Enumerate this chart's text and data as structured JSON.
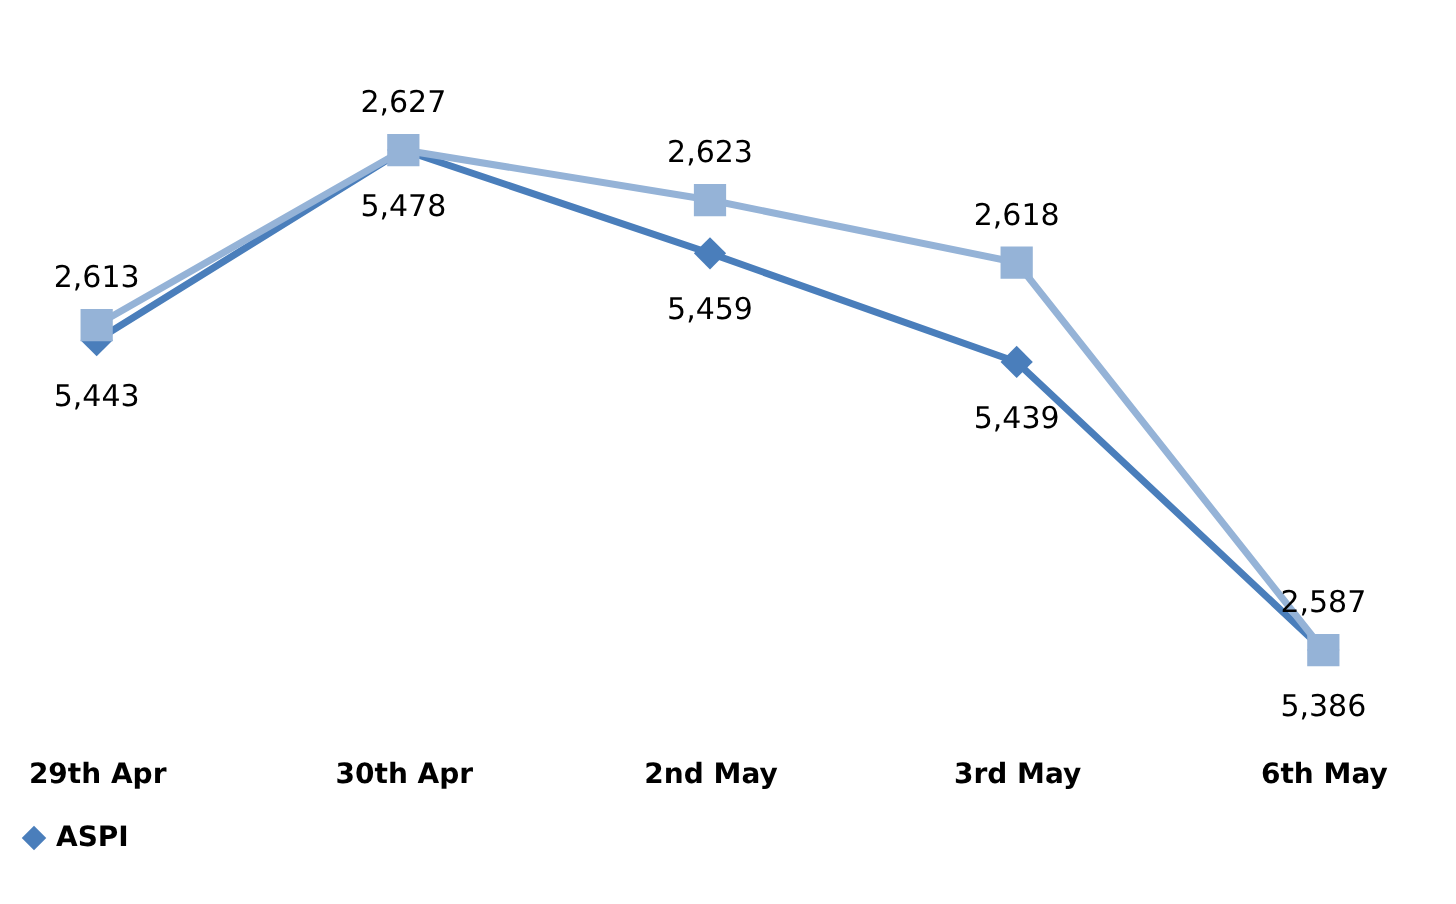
{
  "chart_data": {
    "type": "line",
    "categories": [
      "29th Apr",
      "30th Apr",
      "2nd May",
      "3rd May",
      "6th May"
    ],
    "series": [
      {
        "name": "ASPI",
        "color": "#4a7ebb",
        "values": [
          5443,
          5478,
          5459,
          5439,
          5386
        ],
        "value_labels": [
          "5,443",
          "5,478",
          "5,459",
          "5,439",
          "5,386"
        ],
        "marker": "diamond"
      },
      {
        "color": "#95b3d7",
        "values": [
          2613,
          2627,
          2623,
          2618,
          2587
        ],
        "value_labels": [
          "2,613",
          "2,627",
          "2,623",
          "2,618",
          "2,587"
        ],
        "axis": "y2",
        "marker": "square"
      }
    ],
    "legend": "bottom"
  }
}
